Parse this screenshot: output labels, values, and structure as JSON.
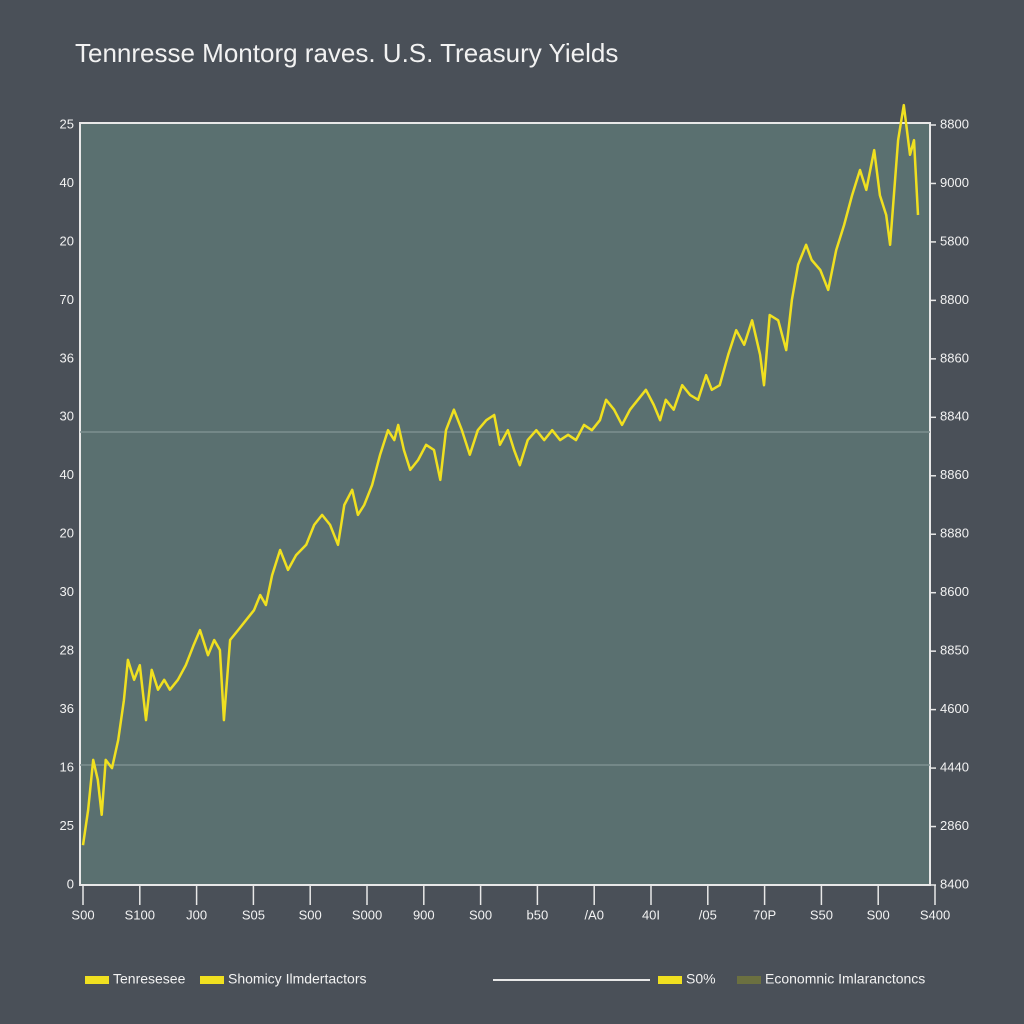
{
  "chart_data": {
    "type": "line",
    "title": "Tennresse Montorg raves. U.S. Treasury Yields",
    "x": [
      0,
      0.09,
      0.18,
      0.26,
      0.33,
      0.4,
      0.51,
      0.62,
      0.72,
      0.79,
      0.9,
      1.0,
      1.11,
      1.21,
      1.32,
      1.43,
      1.53,
      1.67,
      1.81,
      1.95,
      2.06,
      2.2,
      2.31,
      2.41,
      2.48,
      2.59,
      2.73,
      2.87,
      3.01,
      3.12,
      3.22,
      3.33,
      3.47,
      3.61,
      3.75,
      3.93,
      4.07,
      4.21,
      4.35,
      4.49,
      4.6,
      4.74,
      4.84,
      4.95,
      5.09,
      5.23,
      5.37,
      5.48,
      5.55,
      5.65,
      5.76,
      5.9,
      6.04,
      6.18,
      6.29,
      6.39,
      6.53,
      6.67,
      6.81,
      6.95,
      7.1,
      7.24,
      7.34,
      7.48,
      7.59,
      7.69,
      7.83,
      7.98,
      8.12,
      8.26,
      8.4,
      8.54,
      8.68,
      8.82,
      8.96,
      9.1,
      9.21,
      9.35,
      9.49,
      9.63,
      9.77,
      9.91,
      10.05,
      10.16,
      10.26,
      10.4,
      10.55,
      10.69,
      10.83,
      10.97,
      11.07,
      11.21,
      11.36,
      11.5,
      11.64,
      11.78,
      11.92,
      11.99,
      12.09,
      12.24,
      12.38,
      12.48,
      12.59,
      12.73,
      12.83,
      12.98,
      13.12,
      13.26,
      13.4,
      13.54,
      13.68,
      13.79,
      13.93,
      14.03,
      14.14,
      14.21,
      14.35,
      14.45,
      14.56,
      14.63,
      14.7
    ],
    "series": [
      {
        "name": "Tenresesee",
        "color": "#f0e020",
        "values": [
          0.68,
          1.28,
          2.14,
          1.8,
          1.2,
          2.14,
          2.0,
          2.48,
          3.16,
          3.85,
          3.51,
          3.76,
          2.82,
          3.68,
          3.34,
          3.51,
          3.34,
          3.51,
          3.76,
          4.11,
          4.36,
          3.93,
          4.19,
          4.02,
          2.82,
          4.19,
          4.36,
          4.53,
          4.7,
          4.96,
          4.79,
          5.3,
          5.73,
          5.39,
          5.64,
          5.82,
          6.16,
          6.33,
          6.16,
          5.82,
          6.5,
          6.76,
          6.33,
          6.5,
          6.84,
          7.36,
          7.78,
          7.61,
          7.87,
          7.44,
          7.1,
          7.27,
          7.53,
          7.44,
          6.93,
          7.78,
          8.13,
          7.78,
          7.36,
          7.78,
          7.95,
          8.04,
          7.53,
          7.78,
          7.44,
          7.18,
          7.61,
          7.78,
          7.61,
          7.78,
          7.61,
          7.7,
          7.61,
          7.87,
          7.78,
          7.95,
          8.3,
          8.13,
          7.87,
          8.13,
          8.3,
          8.47,
          8.21,
          7.95,
          8.3,
          8.13,
          8.55,
          8.38,
          8.3,
          8.72,
          8.47,
          8.55,
          9.07,
          9.49,
          9.24,
          9.66,
          9.07,
          8.55,
          9.75,
          9.66,
          9.15,
          10.01,
          10.61,
          10.95,
          10.69,
          10.52,
          10.18,
          10.86,
          11.29,
          11.8,
          12.23,
          11.89,
          12.57,
          11.8,
          11.46,
          10.95,
          12.74,
          13.34,
          12.49,
          12.74,
          11.46
        ]
      }
    ],
    "xlim": [
      0,
      15
    ],
    "xticks": [
      {
        "value": 0,
        "label": "S00"
      },
      {
        "value": 1,
        "label": "S100"
      },
      {
        "value": 2,
        "label": "J00"
      },
      {
        "value": 3,
        "label": "S05"
      },
      {
        "value": 4,
        "label": "S00"
      },
      {
        "value": 5,
        "label": "S000"
      },
      {
        "value": 6,
        "label": "900"
      },
      {
        "value": 7,
        "label": "S00"
      },
      {
        "value": 8,
        "label": "b50"
      },
      {
        "value": 9,
        "label": "/A0"
      },
      {
        "value": 10,
        "label": "40I"
      },
      {
        "value": 11,
        "label": "/05"
      },
      {
        "value": 12,
        "label": "70P"
      },
      {
        "value": 13,
        "label": "S50"
      },
      {
        "value": 14,
        "label": "S00"
      },
      {
        "value": 15,
        "label": "S400"
      }
    ],
    "ylim": [
      0,
      13
    ],
    "yticks": [
      {
        "value": 0,
        "label": "0"
      },
      {
        "value": 1,
        "label": "25"
      },
      {
        "value": 2,
        "label": "16"
      },
      {
        "value": 3,
        "label": "36"
      },
      {
        "value": 4,
        "label": "28"
      },
      {
        "value": 5,
        "label": "30"
      },
      {
        "value": 6,
        "label": "20"
      },
      {
        "value": 7,
        "label": "40"
      },
      {
        "value": 8,
        "label": "30"
      },
      {
        "value": 9,
        "label": "36"
      },
      {
        "value": 10,
        "label": "70"
      },
      {
        "value": 11,
        "label": "20"
      },
      {
        "value": 12,
        "label": "40"
      },
      {
        "value": 13,
        "label": "25"
      }
    ],
    "y2lim": [
      0,
      13
    ],
    "y2ticks": [
      {
        "value": 0,
        "label": "8400"
      },
      {
        "value": 1,
        "label": "2860"
      },
      {
        "value": 2,
        "label": "4440"
      },
      {
        "value": 3,
        "label": "4600"
      },
      {
        "value": 4,
        "label": "8850"
      },
      {
        "value": 5,
        "label": "8600"
      },
      {
        "value": 6,
        "label": "8880"
      },
      {
        "value": 7,
        "label": "8860"
      },
      {
        "value": 8,
        "label": "8840"
      },
      {
        "value": 9,
        "label": "8860"
      },
      {
        "value": 10,
        "label": "8800"
      },
      {
        "value": 11,
        "label": "5800"
      },
      {
        "value": 12,
        "label": "9000"
      },
      {
        "value": 13,
        "label": "8800"
      }
    ],
    "legend_items": [
      {
        "label": "Shomicy Ilmdertactors",
        "color": "#f0e020"
      },
      {
        "label": "S0%",
        "color": "#f0e020"
      },
      {
        "label": "Economnic Imlaranctoncs",
        "color": "#6b7040"
      }
    ]
  }
}
